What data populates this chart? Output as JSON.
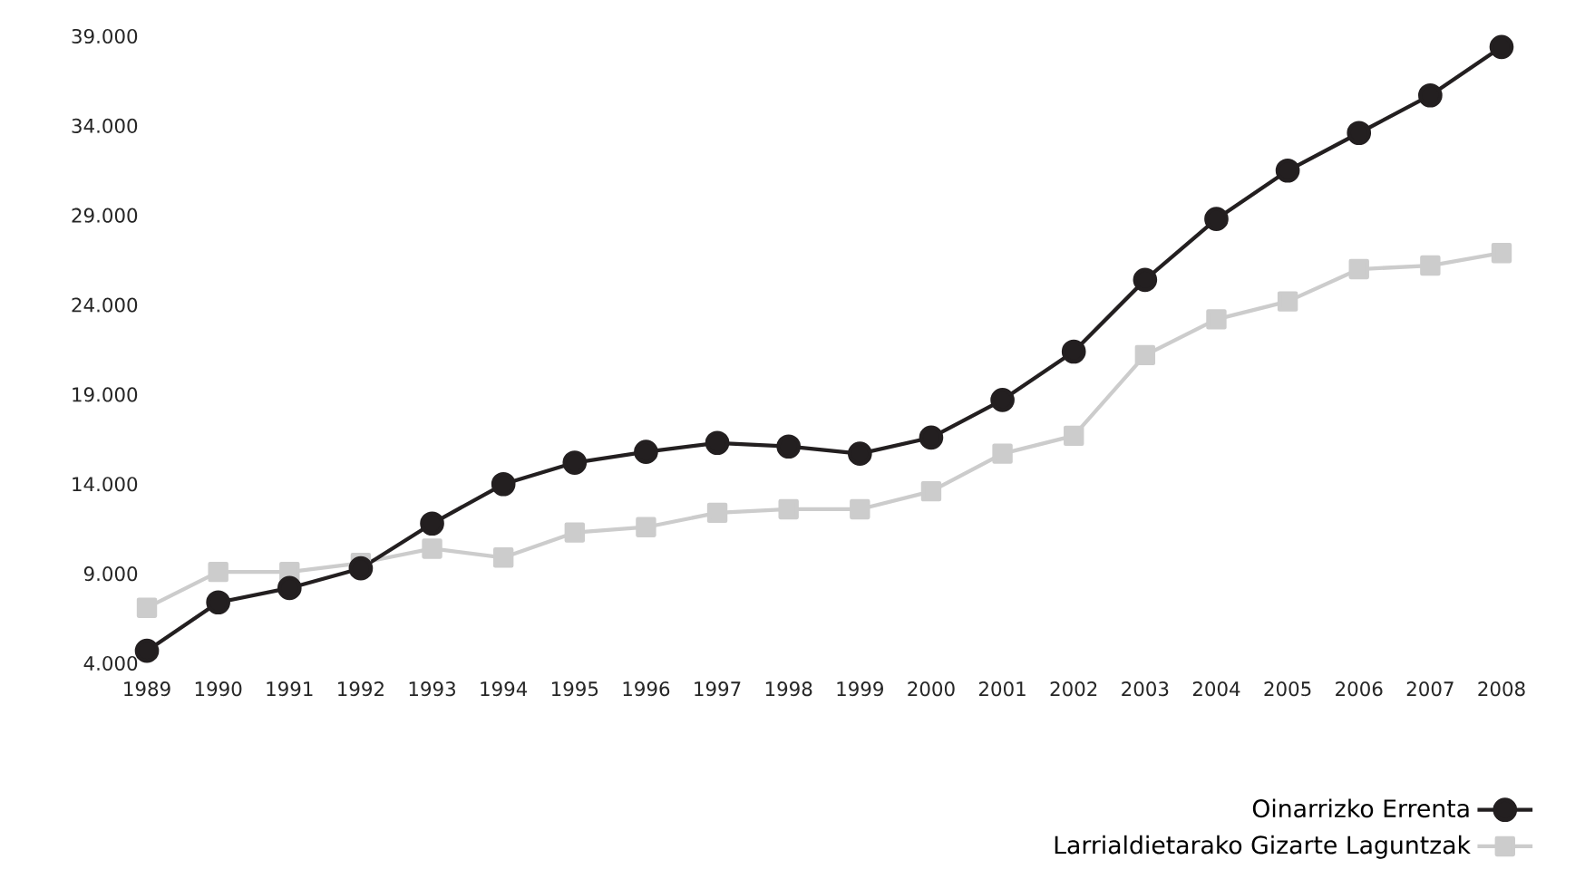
{
  "chart_data": {
    "type": "line",
    "categories": [
      "1989",
      "1990",
      "1991",
      "1992",
      "1993",
      "1994",
      "1995",
      "1996",
      "1997",
      "1998",
      "1999",
      "2000",
      "2001",
      "2002",
      "2003",
      "2004",
      "2005",
      "2006",
      "2007",
      "2008"
    ],
    "series": [
      {
        "name": "Oinarrizko Errenta",
        "color": "#231f20",
        "marker": "circle",
        "values": [
          4700,
          7400,
          8200,
          9300,
          11800,
          14000,
          15200,
          15800,
          16300,
          16100,
          15700,
          16600,
          18700,
          21400,
          25400,
          28800,
          31500,
          33600,
          35700,
          38400
        ]
      },
      {
        "name": "Larrialdietarako Gizarte Laguntzak",
        "color": "#cccccc",
        "marker": "square",
        "values": [
          7100,
          9100,
          9100,
          9600,
          10400,
          9900,
          11300,
          11600,
          12400,
          12600,
          12600,
          13600,
          15700,
          16700,
          21200,
          23200,
          24200,
          26000,
          26200,
          26900
        ]
      }
    ],
    "ylim": [
      4000,
      39000
    ],
    "yticks": [
      {
        "value": 4000,
        "label": "4.000"
      },
      {
        "value": 9000,
        "label": "9.000"
      },
      {
        "value": 14000,
        "label": "14.000"
      },
      {
        "value": 19000,
        "label": "19.000"
      },
      {
        "value": 24000,
        "label": "24.000"
      },
      {
        "value": 29000,
        "label": "29.000"
      },
      {
        "value": 34000,
        "label": "34.000"
      },
      {
        "value": 39000,
        "label": "39.000"
      }
    ],
    "grid": false,
    "legend": "bottom right",
    "line_style": "solid"
  }
}
